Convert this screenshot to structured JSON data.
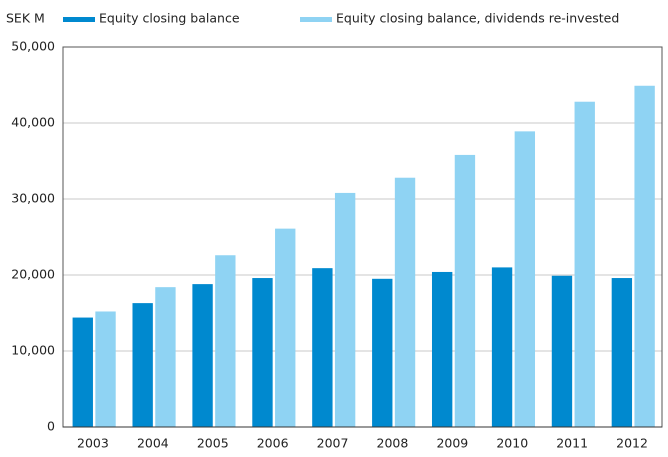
{
  "chart_data": {
    "type": "bar",
    "y_label": "SEK M",
    "categories": [
      "2003",
      "2004",
      "2005",
      "2006",
      "2007",
      "2008",
      "2009",
      "2010",
      "2011",
      "2012"
    ],
    "series": [
      {
        "name": "Equity closing balance",
        "color": "#0089cf",
        "values": [
          14400,
          16300,
          18800,
          19600,
          20900,
          19500,
          20400,
          21000,
          19900,
          19600
        ]
      },
      {
        "name": "Equity closing balance, dividends re-invested",
        "color": "#8fd3f3",
        "values": [
          15200,
          18400,
          22600,
          26100,
          30800,
          32800,
          35800,
          38900,
          42800,
          44900
        ]
      }
    ],
    "ylim": [
      0,
      50000
    ],
    "yticks": [
      0,
      {
        "value": 10000,
        "label": "10,000"
      },
      {
        "value": 20000,
        "label": "20,000"
      },
      {
        "value": 30000,
        "label": "30,000"
      },
      {
        "value": 40000,
        "label": "40,000"
      },
      {
        "value": 50000,
        "label": "50,000"
      }
    ],
    "grid": true
  }
}
